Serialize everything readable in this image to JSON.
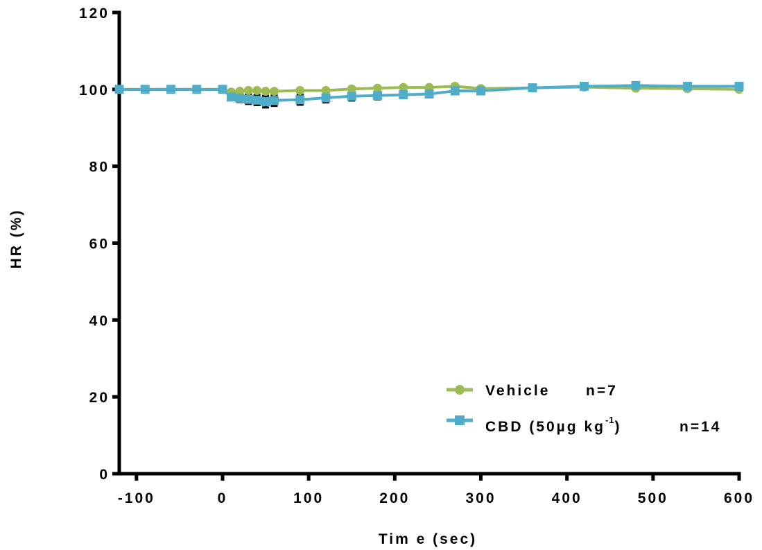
{
  "chart_data": {
    "type": "line",
    "xlabel": "Tim e (sec)",
    "ylabel": "HR (%)",
    "xlim": [
      -120,
      600
    ],
    "ylim": [
      0,
      120
    ],
    "xticks": [
      -100,
      0,
      100,
      200,
      300,
      400,
      500,
      600
    ],
    "xtick_labels": [
      "-100",
      "0",
      "100",
      "200",
      "300",
      "400",
      "500",
      "600"
    ],
    "yticks": [
      0,
      20,
      40,
      60,
      80,
      100,
      120
    ],
    "ytick_labels": [
      "0",
      "20",
      "40",
      "60",
      "80",
      "100",
      "120"
    ],
    "grid": false,
    "legend_position": "bottom-right",
    "series": [
      {
        "name": "Vehicle",
        "n_label": "n=7",
        "color": "#9cbb52",
        "marker": "circle",
        "x": [
          -120,
          -90,
          -60,
          -30,
          0,
          10,
          20,
          30,
          40,
          50,
          60,
          90,
          120,
          150,
          180,
          210,
          240,
          270,
          300,
          360,
          420,
          480,
          540,
          600
        ],
        "y": [
          100,
          100,
          100,
          100,
          100,
          99.3,
          99.5,
          99.7,
          99.7,
          99.5,
          99.5,
          99.7,
          99.7,
          100.1,
          100.3,
          100.5,
          100.5,
          100.8,
          100.2,
          100.4,
          100.6,
          100.3,
          100.2,
          100.0
        ],
        "err": [
          0,
          0,
          0,
          0,
          0,
          0.3,
          0.4,
          0.4,
          0.4,
          0.4,
          0.4,
          0.4,
          0.4,
          0.3,
          0.3,
          0.3,
          0.3,
          0.3,
          0.3,
          0.3,
          0.3,
          0.3,
          0.3,
          0.3
        ]
      },
      {
        "name": "CBD (50µg kg⁻¹)",
        "legend_label_main": "CBD (50µg kg",
        "legend_label_sup": "-1",
        "legend_label_tail": ")",
        "n_label": "n=14",
        "color": "#4fadc9",
        "marker": "square",
        "x": [
          -120,
          -90,
          -60,
          -30,
          0,
          10,
          20,
          30,
          40,
          50,
          60,
          90,
          120,
          150,
          180,
          210,
          240,
          270,
          300,
          360,
          420,
          480,
          540,
          600
        ],
        "y": [
          100,
          100,
          100,
          100,
          100,
          98.0,
          97.7,
          97.4,
          97.2,
          96.8,
          97.1,
          97.3,
          97.8,
          98.2,
          98.4,
          98.6,
          98.8,
          99.6,
          99.6,
          100.4,
          100.8,
          101.0,
          100.8,
          100.8
        ],
        "err": [
          0,
          0,
          0,
          0,
          0,
          0.8,
          1.0,
          1.2,
          1.3,
          1.5,
          1.4,
          1.3,
          1.2,
          1.1,
          1.0,
          0.9,
          0.8,
          0.4,
          0.4,
          0.3,
          0.3,
          0.3,
          0.3,
          0.3
        ]
      }
    ]
  }
}
